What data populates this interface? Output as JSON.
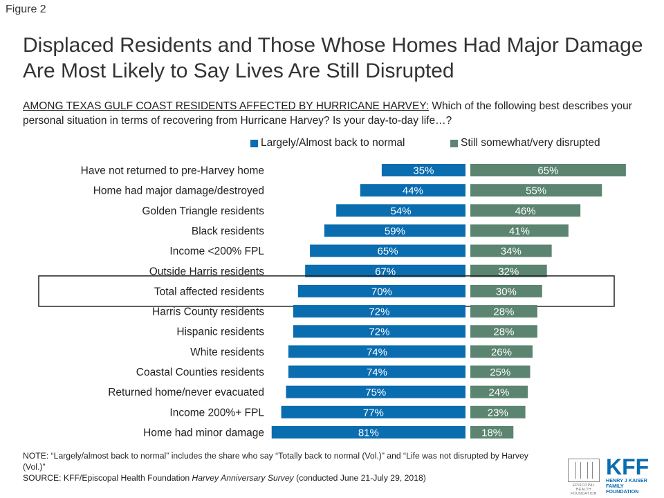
{
  "figure_label": "Figure 2",
  "title": "Displaced Residents and Those Whose Homes Had Major Damage Are Most Likely to Say Lives Are Still Disrupted",
  "subtitle_underlined": "AMONG TEXAS GULF COAST RESIDENTS AFFECTED BY HURRICANE HARVEY:",
  "subtitle_rest": " Which of the following best describes your personal situation in terms of recovering from Hurricane Harvey? Is your day-to-day life…?",
  "legend": {
    "series1": "Largely/Almost back to normal",
    "series2": "Still somewhat/very disrupted"
  },
  "colors": {
    "normal": "#0a6db0",
    "disrupted": "#5c8571",
    "highlight_box": "#222222"
  },
  "chart_data": {
    "type": "bar",
    "orientation": "horizontal-diverging",
    "highlighted_category": "Total affected residents",
    "categories": [
      "Have not returned to pre-Harvey home",
      "Home had major damage/destroyed",
      "Golden Triangle residents",
      "Black residents",
      "Income <200% FPL",
      "Outside Harris residents",
      "Total affected residents",
      "Harris County residents",
      "Hispanic residents",
      "White residents",
      "Coastal Counties residents",
      "Returned home/never evacuated",
      "Income 200%+ FPL",
      "Home had minor damage"
    ],
    "series": [
      {
        "name": "Largely/Almost back to normal",
        "values": [
          35,
          44,
          54,
          59,
          65,
          67,
          70,
          72,
          72,
          74,
          74,
          75,
          77,
          81
        ]
      },
      {
        "name": "Still somewhat/very disrupted",
        "values": [
          65,
          55,
          46,
          41,
          34,
          32,
          30,
          28,
          28,
          26,
          25,
          24,
          23,
          18
        ]
      }
    ],
    "value_suffix": "%"
  },
  "note": "NOTE: “Largely/almost back to normal” includes the share who say “Totally back to normal (Vol.)” and “Life was not disrupted by Harvey (Vol.)”",
  "source_prefix": "SOURCE: KFF/Episcopal Health Foundation ",
  "source_italic": "Harvey Anniversary Survey",
  "source_suffix": " (conducted June 21-July 29, 2018)",
  "logos": {
    "kff_mark": "KFF",
    "kff_line1": "HENRY J KAISER",
    "kff_line2": "FAMILY FOUNDATION",
    "ehf_line1": "EPISCOPAL HEALTH",
    "ehf_line2": "FOUNDATION"
  }
}
